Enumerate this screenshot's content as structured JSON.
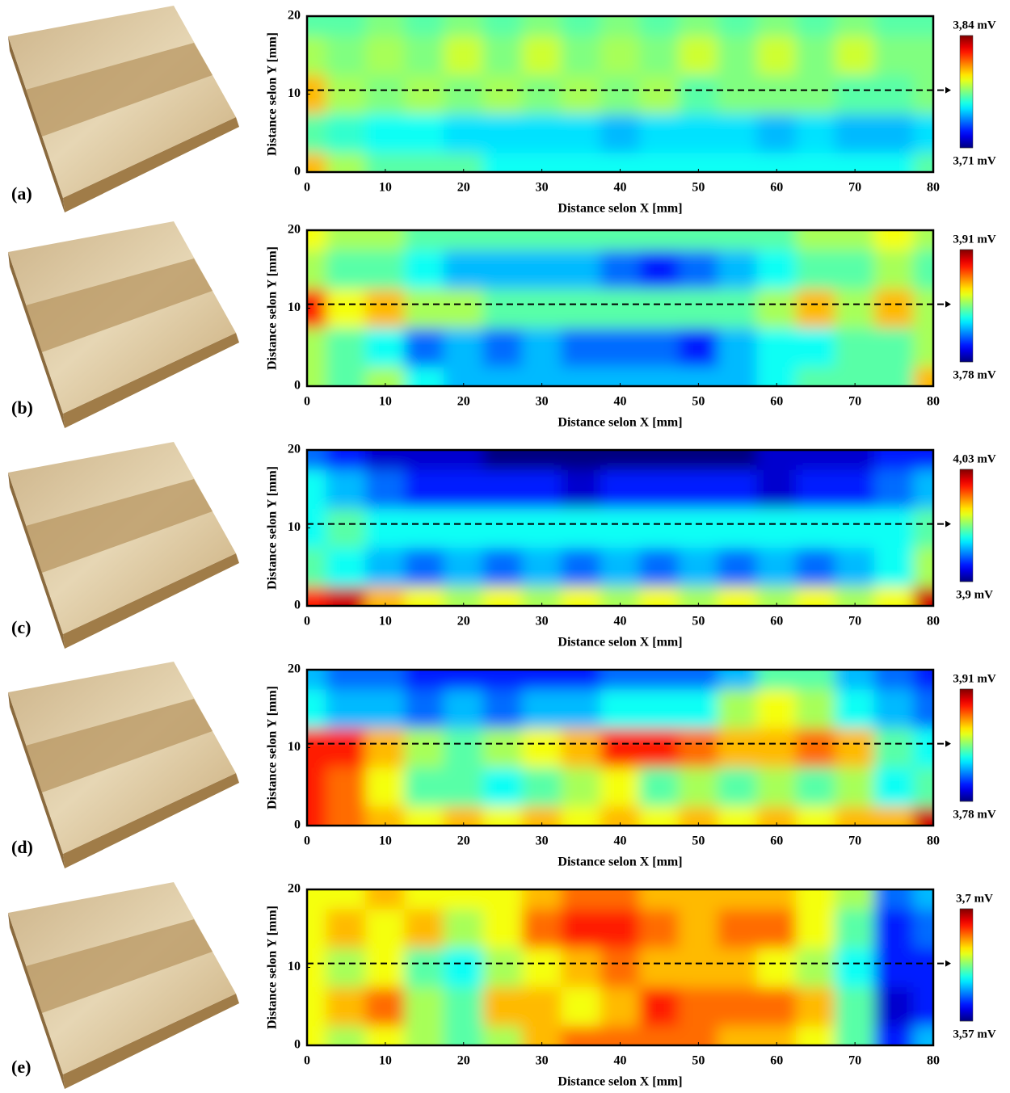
{
  "chart_data": [
    {
      "type": "heatmap",
      "label": "(a)",
      "xlabel": "Distance selon X [mm]",
      "ylabel": "Distance selon Y [mm]",
      "x": [
        0,
        5,
        10,
        15,
        20,
        25,
        30,
        35,
        40,
        45,
        50,
        55,
        60,
        65,
        70,
        75,
        80
      ],
      "y": [
        0,
        5,
        10,
        15,
        20
      ],
      "z": [
        [
          3.8,
          3.78,
          3.77,
          3.77,
          3.77,
          3.76,
          3.76,
          3.76,
          3.76,
          3.76,
          3.76,
          3.76,
          3.76,
          3.76,
          3.76,
          3.76,
          3.77
        ],
        [
          3.77,
          3.765,
          3.76,
          3.76,
          3.755,
          3.755,
          3.755,
          3.755,
          3.75,
          3.755,
          3.755,
          3.755,
          3.75,
          3.755,
          3.75,
          3.75,
          3.755
        ],
        [
          3.8,
          3.78,
          3.775,
          3.78,
          3.775,
          3.78,
          3.775,
          3.78,
          3.775,
          3.78,
          3.77,
          3.775,
          3.775,
          3.775,
          3.77,
          3.77,
          3.775
        ],
        [
          3.78,
          3.775,
          3.78,
          3.775,
          3.785,
          3.775,
          3.785,
          3.775,
          3.78,
          3.775,
          3.785,
          3.775,
          3.785,
          3.775,
          3.785,
          3.775,
          3.775
        ],
        [
          3.77,
          3.77,
          3.775,
          3.77,
          3.775,
          3.77,
          3.775,
          3.77,
          3.775,
          3.77,
          3.775,
          3.77,
          3.775,
          3.77,
          3.775,
          3.77,
          3.77
        ]
      ],
      "xlim": [
        0,
        80
      ],
      "ylim": [
        0,
        20
      ],
      "xticks": [
        0,
        10,
        20,
        30,
        40,
        50,
        60,
        70,
        80
      ],
      "yticks": [
        0,
        10,
        20
      ],
      "colormap": "jet",
      "clim": [
        3.71,
        3.84
      ],
      "cticks": [
        {
          "value": 3.71,
          "label": "3,71 mV"
        },
        {
          "value": 3.84,
          "label": "3,84 mV"
        }
      ],
      "profile_y": 10.5
    },
    {
      "type": "heatmap",
      "label": "(b)",
      "xlabel": "Distance selon X [mm]",
      "ylabel": "Distance selon Y [mm]",
      "x": [
        0,
        5,
        10,
        15,
        20,
        25,
        30,
        35,
        40,
        45,
        50,
        55,
        60,
        65,
        70,
        75,
        80
      ],
      "y": [
        0,
        5,
        10,
        15,
        20
      ],
      "z": [
        [
          3.85,
          3.84,
          3.85,
          3.83,
          3.82,
          3.82,
          3.82,
          3.82,
          3.82,
          3.82,
          3.82,
          3.82,
          3.83,
          3.84,
          3.84,
          3.84,
          3.87
        ],
        [
          3.85,
          3.84,
          3.83,
          3.81,
          3.82,
          3.81,
          3.82,
          3.81,
          3.81,
          3.81,
          3.8,
          3.82,
          3.83,
          3.83,
          3.84,
          3.84,
          3.85
        ],
        [
          3.89,
          3.86,
          3.87,
          3.85,
          3.85,
          3.84,
          3.84,
          3.84,
          3.84,
          3.84,
          3.84,
          3.84,
          3.85,
          3.87,
          3.85,
          3.87,
          3.85
        ],
        [
          3.85,
          3.84,
          3.84,
          3.83,
          3.82,
          3.82,
          3.82,
          3.82,
          3.81,
          3.8,
          3.81,
          3.82,
          3.83,
          3.84,
          3.84,
          3.85,
          3.84
        ],
        [
          3.86,
          3.85,
          3.85,
          3.84,
          3.84,
          3.84,
          3.84,
          3.84,
          3.84,
          3.84,
          3.84,
          3.84,
          3.84,
          3.85,
          3.85,
          3.86,
          3.85
        ]
      ],
      "xlim": [
        0,
        80
      ],
      "ylim": [
        0,
        20
      ],
      "xticks": [
        0,
        10,
        20,
        30,
        40,
        50,
        60,
        70,
        80
      ],
      "yticks": [
        0,
        10,
        20
      ],
      "colormap": "jet",
      "clim": [
        3.78,
        3.91
      ],
      "cticks": [
        {
          "value": 3.78,
          "label": "3,78 mV"
        },
        {
          "value": 3.91,
          "label": "3,91 mV"
        }
      ],
      "profile_y": 10.5
    },
    {
      "type": "heatmap",
      "label": "(c)",
      "xlabel": "Distance selon X [mm]",
      "ylabel": "Distance selon Y [mm]",
      "x": [
        0,
        5,
        10,
        15,
        20,
        25,
        30,
        35,
        40,
        45,
        50,
        55,
        60,
        65,
        70,
        75,
        80
      ],
      "y": [
        0,
        5,
        10,
        15,
        20
      ],
      "z": [
        [
          4.01,
          4.02,
          3.99,
          3.98,
          3.97,
          3.98,
          3.97,
          3.98,
          3.97,
          3.98,
          3.97,
          3.98,
          3.97,
          3.98,
          3.97,
          3.98,
          4.02
        ],
        [
          3.96,
          3.95,
          3.94,
          3.93,
          3.94,
          3.93,
          3.94,
          3.93,
          3.94,
          3.93,
          3.94,
          3.93,
          3.94,
          3.93,
          3.94,
          3.95,
          3.97
        ],
        [
          3.95,
          3.96,
          3.95,
          3.95,
          3.95,
          3.95,
          3.95,
          3.95,
          3.95,
          3.95,
          3.95,
          3.95,
          3.95,
          3.95,
          3.95,
          3.95,
          3.96
        ],
        [
          3.95,
          3.94,
          3.93,
          3.92,
          3.92,
          3.92,
          3.92,
          3.91,
          3.92,
          3.92,
          3.92,
          3.92,
          3.91,
          3.92,
          3.92,
          3.93,
          3.94
        ],
        [
          3.93,
          3.92,
          3.91,
          3.91,
          3.91,
          3.9,
          3.9,
          3.9,
          3.9,
          3.9,
          3.9,
          3.9,
          3.91,
          3.91,
          3.91,
          3.92,
          3.92
        ]
      ],
      "xlim": [
        0,
        80
      ],
      "ylim": [
        0,
        20
      ],
      "xticks": [
        0,
        10,
        20,
        30,
        40,
        50,
        60,
        70,
        80
      ],
      "yticks": [
        0,
        10,
        20
      ],
      "colormap": "jet",
      "clim": [
        3.9,
        4.03
      ],
      "cticks": [
        {
          "value": 3.9,
          "label": "3,9 mV"
        },
        {
          "value": 4.03,
          "label": "4,03 mV"
        }
      ],
      "profile_y": 10.5
    },
    {
      "type": "heatmap",
      "label": "(d)",
      "xlabel": "Distance selon X [mm]",
      "ylabel": "Distance selon Y [mm]",
      "x": [
        0,
        5,
        10,
        15,
        20,
        25,
        30,
        35,
        40,
        45,
        50,
        55,
        60,
        65,
        70,
        75,
        80
      ],
      "y": [
        0,
        5,
        10,
        15,
        20
      ],
      "z": [
        [
          3.89,
          3.88,
          3.87,
          3.86,
          3.87,
          3.86,
          3.87,
          3.86,
          3.87,
          3.86,
          3.87,
          3.86,
          3.87,
          3.86,
          3.87,
          3.87,
          3.9
        ],
        [
          3.89,
          3.88,
          3.86,
          3.84,
          3.84,
          3.83,
          3.84,
          3.85,
          3.86,
          3.84,
          3.85,
          3.84,
          3.85,
          3.84,
          3.85,
          3.83,
          3.84
        ],
        [
          3.89,
          3.89,
          3.87,
          3.85,
          3.84,
          3.85,
          3.86,
          3.87,
          3.89,
          3.89,
          3.88,
          3.87,
          3.87,
          3.88,
          3.87,
          3.84,
          3.83
        ],
        [
          3.83,
          3.82,
          3.82,
          3.81,
          3.82,
          3.81,
          3.82,
          3.82,
          3.83,
          3.83,
          3.83,
          3.85,
          3.86,
          3.85,
          3.83,
          3.82,
          3.81
        ],
        [
          3.82,
          3.81,
          3.81,
          3.8,
          3.8,
          3.8,
          3.8,
          3.8,
          3.81,
          3.81,
          3.81,
          3.82,
          3.84,
          3.84,
          3.82,
          3.81,
          3.8
        ]
      ],
      "xlim": [
        0,
        80
      ],
      "ylim": [
        0,
        20
      ],
      "xticks": [
        0,
        10,
        20,
        30,
        40,
        50,
        60,
        70,
        80
      ],
      "yticks": [
        0,
        10,
        20
      ],
      "colormap": "jet",
      "clim": [
        3.78,
        3.91
      ],
      "cticks": [
        {
          "value": 3.78,
          "label": "3,78 mV"
        },
        {
          "value": 3.91,
          "label": "3,91 mV"
        }
      ],
      "profile_y": 10.5
    },
    {
      "type": "heatmap",
      "label": "(e)",
      "xlabel": "Distance selon X [mm]",
      "ylabel": "Distance selon Y [mm]",
      "x": [
        0,
        5,
        10,
        15,
        20,
        25,
        30,
        35,
        40,
        45,
        50,
        55,
        60,
        65,
        70,
        75,
        80
      ],
      "y": [
        0,
        5,
        10,
        15,
        20
      ],
      "z": [
        [
          3.65,
          3.64,
          3.65,
          3.64,
          3.63,
          3.64,
          3.66,
          3.67,
          3.67,
          3.67,
          3.67,
          3.66,
          3.66,
          3.65,
          3.63,
          3.59,
          3.61
        ],
        [
          3.65,
          3.66,
          3.67,
          3.64,
          3.63,
          3.66,
          3.66,
          3.65,
          3.66,
          3.68,
          3.67,
          3.67,
          3.67,
          3.66,
          3.63,
          3.58,
          3.59
        ],
        [
          3.65,
          3.64,
          3.65,
          3.63,
          3.62,
          3.64,
          3.65,
          3.66,
          3.67,
          3.66,
          3.66,
          3.66,
          3.65,
          3.64,
          3.62,
          3.59,
          3.59
        ],
        [
          3.65,
          3.66,
          3.65,
          3.66,
          3.64,
          3.65,
          3.67,
          3.68,
          3.68,
          3.67,
          3.66,
          3.67,
          3.67,
          3.65,
          3.63,
          3.59,
          3.6
        ],
        [
          3.65,
          3.65,
          3.66,
          3.65,
          3.65,
          3.65,
          3.66,
          3.67,
          3.67,
          3.66,
          3.66,
          3.66,
          3.66,
          3.65,
          3.64,
          3.6,
          3.61
        ]
      ],
      "xlim": [
        0,
        80
      ],
      "ylim": [
        0,
        20
      ],
      "xticks": [
        0,
        10,
        20,
        30,
        40,
        50,
        60,
        70,
        80
      ],
      "yticks": [
        0,
        10,
        20
      ],
      "colormap": "jet",
      "clim": [
        3.57,
        3.7
      ],
      "cticks": [
        {
          "value": 3.57,
          "label": "3,57 mV"
        },
        {
          "value": 3.7,
          "label": "3,7 mV"
        }
      ],
      "profile_y": 10.5
    }
  ]
}
